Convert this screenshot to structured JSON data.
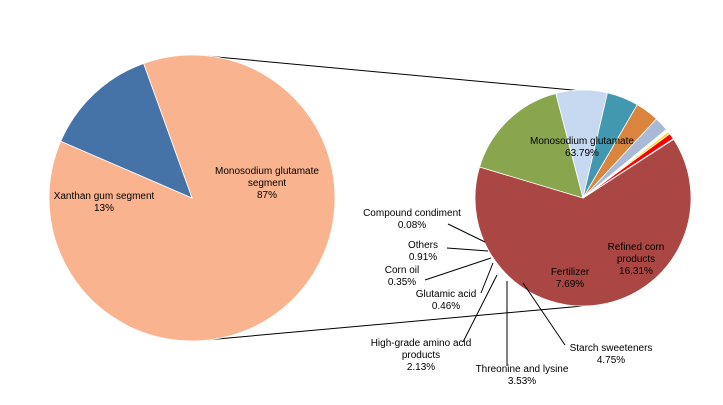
{
  "chart_data": [
    {
      "type": "pie",
      "title": "",
      "slices": [
        {
          "label_lines": [
            "Monosodium glutamate",
            "segment"
          ],
          "value_label": "87%",
          "value": 87,
          "color": "#F9B48F"
        },
        {
          "label_lines": [
            "Xanthan gum segment"
          ],
          "value_label": "13%",
          "value": 13,
          "color": "#4573A8"
        }
      ]
    },
    {
      "type": "pie",
      "title": "",
      "slices": [
        {
          "label_lines": [
            "Monosodium glutamate"
          ],
          "value_label": "63.79%",
          "value": 63.79,
          "color": "#AA4643"
        },
        {
          "label_lines": [
            "Refined corn",
            "products"
          ],
          "value_label": "16.31%",
          "value": 16.31,
          "color": "#89A54E"
        },
        {
          "label_lines": [
            "Fertilizer"
          ],
          "value_label": "7.69%",
          "value": 7.69,
          "color": "#C6D9F1"
        },
        {
          "label_lines": [
            "Starch sweeteners"
          ],
          "value_label": "4.75%",
          "value": 4.75,
          "color": "#4198AF"
        },
        {
          "label_lines": [
            "Threonine and lysine"
          ],
          "value_label": "3.53%",
          "value": 3.53,
          "color": "#DB843D"
        },
        {
          "label_lines": [
            "High-grade amino acid",
            "products"
          ],
          "value_label": "2.13%",
          "value": 2.13,
          "color": "#A9B9D8"
        },
        {
          "label_lines": [
            "Glutamic acid"
          ],
          "value_label": "0.46%",
          "value": 0.46,
          "color": "#FFFFFF"
        },
        {
          "label_lines": [
            "Corn oil"
          ],
          "value_label": "0.35%",
          "value": 0.35,
          "color": "#FFD700"
        },
        {
          "label_lines": [
            "Others"
          ],
          "value_label": "0.91%",
          "value": 0.91,
          "color": "#FF0000"
        },
        {
          "label_lines": [
            "Compound condiment"
          ],
          "value_label": "0.08%",
          "value": 0.08,
          "color": "#9A1A1A"
        }
      ]
    }
  ]
}
